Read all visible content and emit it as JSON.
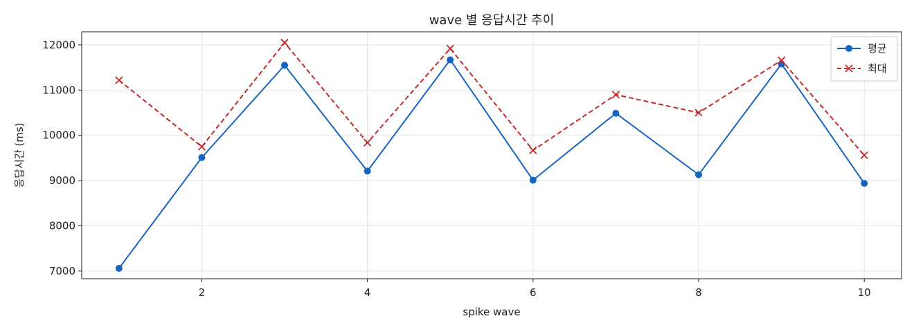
{
  "chart_data": {
    "type": "line",
    "title": "wave 별 응답시간 추이",
    "xlabel": "spike wave",
    "ylabel": "응답시간 (ms)",
    "x": [
      1,
      2,
      3,
      4,
      5,
      6,
      7,
      8,
      9,
      10
    ],
    "xlim": [
      0.55,
      10.45
    ],
    "ylim": [
      6830,
      12290
    ],
    "xticks": [
      2,
      4,
      6,
      8,
      10
    ],
    "yticks": [
      7000,
      8000,
      9000,
      10000,
      11000,
      12000
    ],
    "grid": true,
    "legend_position": "top-right",
    "series": [
      {
        "name": "평균",
        "color": "#1565c0",
        "line_style": "solid",
        "marker": "circle",
        "values": [
          7060,
          9510,
          11550,
          9210,
          11670,
          9010,
          10490,
          9130,
          11580,
          8940
        ]
      },
      {
        "name": "최대",
        "color": "#c62828",
        "line_style": "dashed",
        "marker": "x",
        "values": [
          11220,
          9750,
          12050,
          9840,
          11920,
          9670,
          10900,
          10500,
          11660,
          9560
        ]
      }
    ]
  }
}
